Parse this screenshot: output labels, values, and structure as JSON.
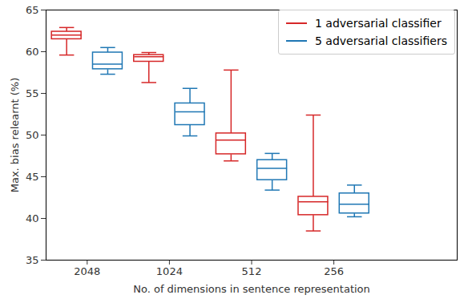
{
  "chart_data": {
    "type": "box",
    "x_label": "No. of dimensions in sentence representation",
    "y_label": "Max. bias relearnt (%)",
    "categories": [
      "2048",
      "1024",
      "512",
      "256"
    ],
    "ylim": [
      35,
      65
    ],
    "yticks": [
      35,
      40,
      45,
      50,
      55,
      60,
      65
    ],
    "grid": false,
    "legend": "upper right",
    "series": [
      {
        "name": "1 adversarial classifier",
        "color": "#d62728",
        "min": [
          59.6,
          56.3,
          46.9,
          38.5
        ],
        "q1": [
          61.5,
          58.8,
          47.7,
          40.4
        ],
        "median": [
          62.0,
          59.4,
          49.4,
          42.0
        ],
        "q3": [
          62.4,
          59.6,
          50.2,
          42.6
        ],
        "max": [
          62.9,
          59.9,
          57.8,
          52.4
        ]
      },
      {
        "name": "5 adversarial classifiers",
        "color": "#1f77b4",
        "min": [
          57.3,
          49.9,
          43.4,
          40.2
        ],
        "q1": [
          57.9,
          51.2,
          44.6,
          40.6
        ],
        "median": [
          58.5,
          52.8,
          46.0,
          41.7
        ],
        "q3": [
          59.9,
          53.8,
          47.0,
          43.0
        ],
        "max": [
          60.5,
          55.6,
          47.8,
          44.0
        ]
      }
    ]
  }
}
